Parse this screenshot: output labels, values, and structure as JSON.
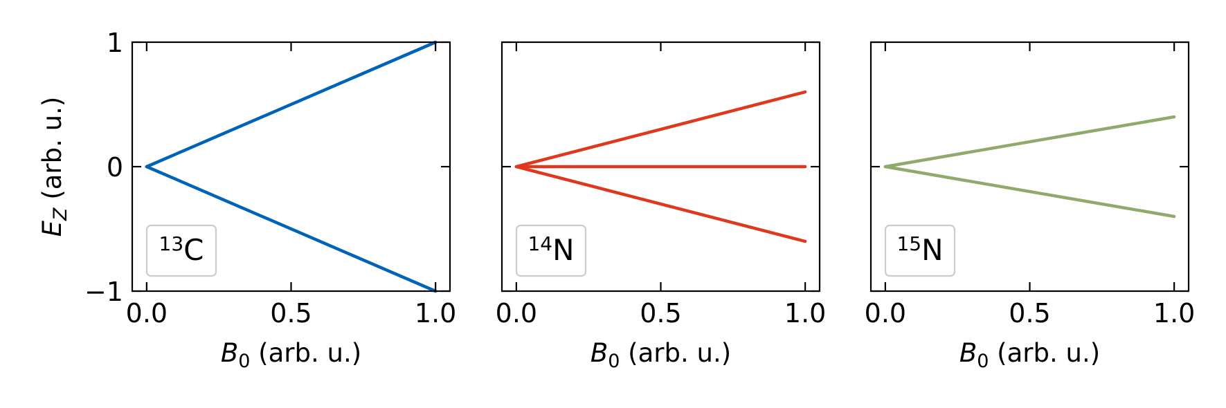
{
  "chart_data": [
    {
      "type": "line",
      "panel": "13C",
      "legend": {
        "sup": "13",
        "label": "C",
        "placement": "lower-left"
      },
      "color": "#0063b8",
      "xlabel": {
        "italic": "B",
        "sub": "0",
        "rest": " (arb. u.)"
      },
      "ylabel": {
        "italic": "E",
        "sub": "Z",
        "rest": " (arb. u.)"
      },
      "xlim": [
        -0.05,
        1.05
      ],
      "ylim": [
        -1,
        1
      ],
      "xticks": [
        0.0,
        0.5,
        1.0
      ],
      "xtick_labels": [
        "0.0",
        "0.5",
        "1.0"
      ],
      "yticks": [
        -1,
        0,
        1
      ],
      "ytick_labels": [
        "−1",
        "0",
        "1"
      ],
      "show_y_tick_labels": true,
      "series": [
        {
          "x": [
            0,
            1
          ],
          "y": [
            0,
            1.0
          ]
        },
        {
          "x": [
            0,
            1
          ],
          "y": [
            0,
            -1.0
          ]
        }
      ]
    },
    {
      "type": "line",
      "panel": "14N",
      "legend": {
        "sup": "14",
        "label": "N",
        "placement": "lower-left"
      },
      "color": "#e0371f",
      "xlabel": {
        "italic": "B",
        "sub": "0",
        "rest": " (arb. u.)"
      },
      "xlim": [
        -0.05,
        1.05
      ],
      "ylim": [
        -1,
        1
      ],
      "xticks": [
        0.0,
        0.5,
        1.0
      ],
      "xtick_labels": [
        "0.0",
        "0.5",
        "1.0"
      ],
      "yticks": [
        -1,
        0,
        1
      ],
      "show_y_tick_labels": false,
      "series": [
        {
          "x": [
            0,
            1
          ],
          "y": [
            0,
            0.6
          ]
        },
        {
          "x": [
            0,
            1
          ],
          "y": [
            0,
            0.0
          ]
        },
        {
          "x": [
            0,
            1
          ],
          "y": [
            0,
            -0.6
          ]
        }
      ]
    },
    {
      "type": "line",
      "panel": "15N",
      "legend": {
        "sup": "15",
        "label": "N",
        "placement": "lower-left"
      },
      "color": "#8faa6b",
      "xlabel": {
        "italic": "B",
        "sub": "0",
        "rest": " (arb. u.)"
      },
      "xlim": [
        -0.05,
        1.05
      ],
      "ylim": [
        -1,
        1
      ],
      "xticks": [
        0.0,
        0.5,
        1.0
      ],
      "xtick_labels": [
        "0.0",
        "0.5",
        "1.0"
      ],
      "yticks": [
        -1,
        0,
        1
      ],
      "show_y_tick_labels": false,
      "series": [
        {
          "x": [
            0,
            1
          ],
          "y": [
            0,
            0.4
          ]
        },
        {
          "x": [
            0,
            1
          ],
          "y": [
            0,
            -0.4
          ]
        }
      ]
    }
  ]
}
